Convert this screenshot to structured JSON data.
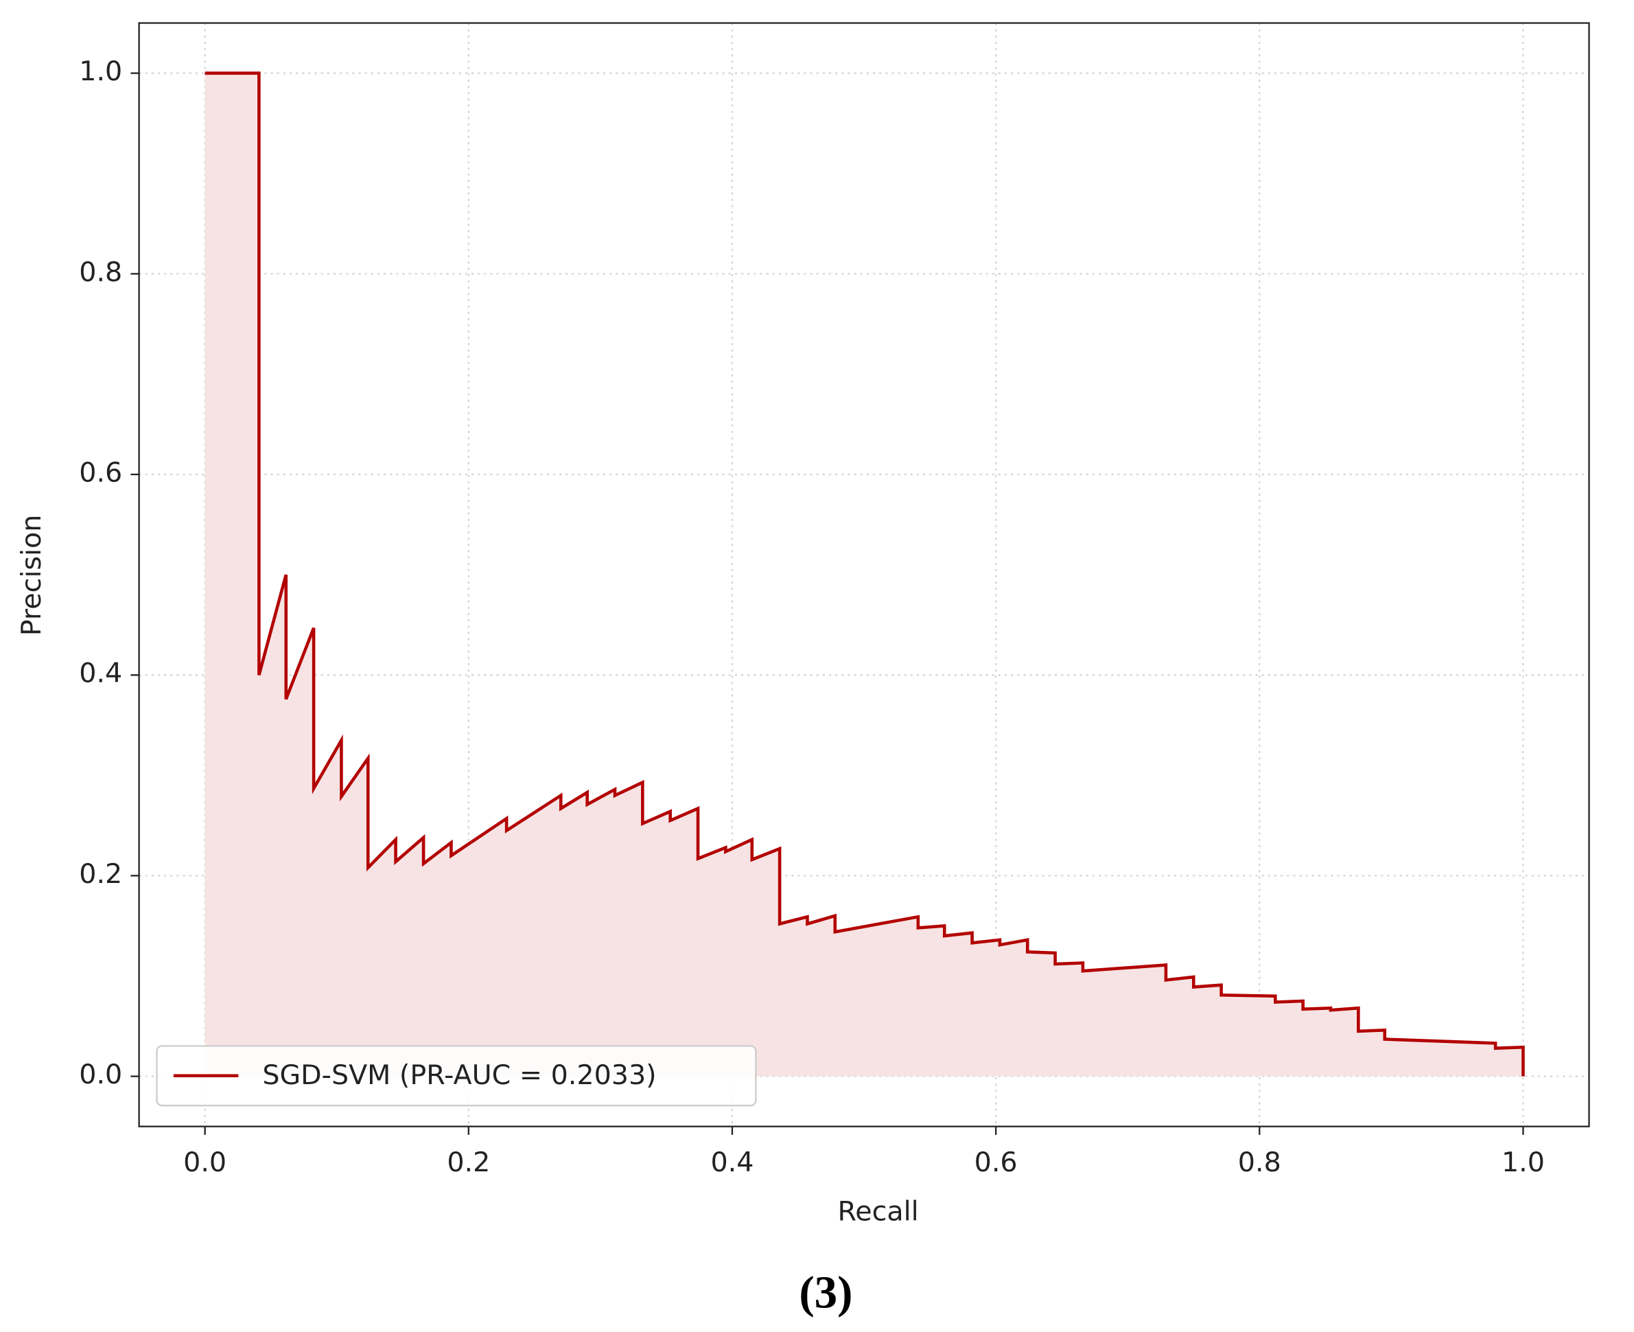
{
  "chart_data": {
    "type": "line",
    "x_label": "Recall",
    "y_label": "Precision",
    "caption": "(3)",
    "x": [
      0,
      0.041,
      0.041,
      0.0615,
      0.0615,
      0.0825,
      0.0825,
      0.1035,
      0.1035,
      0.1237,
      0.1237,
      0.1447,
      0.1447,
      0.1658,
      0.1658,
      0.1868,
      0.1868,
      0.2288,
      0.2288,
      0.27,
      0.27,
      0.29,
      0.29,
      0.311,
      0.311,
      0.332,
      0.332,
      0.353,
      0.353,
      0.374,
      0.374,
      0.395,
      0.395,
      0.415,
      0.415,
      0.436,
      0.436,
      0.457,
      0.457,
      0.478,
      0.478,
      0.541,
      0.541,
      0.561,
      0.561,
      0.582,
      0.582,
      0.603,
      0.603,
      0.624,
      0.624,
      0.645,
      0.645,
      0.666,
      0.666,
      0.729,
      0.729,
      0.75,
      0.75,
      0.771,
      0.771,
      0.812,
      0.812,
      0.833,
      0.833,
      0.854,
      0.854,
      0.875,
      0.875,
      0.895,
      0.895,
      0.979,
      0.979,
      1.0,
      1.0
    ],
    "series": [
      {
        "name": "SGD-SVM (PR-AUC = 0.2033)",
        "color": "#b30000",
        "fill": "#f7e3e3",
        "values": [
          1.0,
          1.0,
          0.4,
          0.5,
          0.376,
          0.447,
          0.287,
          0.335,
          0.279,
          0.317,
          0.208,
          0.236,
          0.214,
          0.238,
          0.212,
          0.233,
          0.22,
          0.257,
          0.245,
          0.28,
          0.267,
          0.283,
          0.271,
          0.286,
          0.28,
          0.293,
          0.252,
          0.264,
          0.255,
          0.267,
          0.217,
          0.228,
          0.224,
          0.236,
          0.216,
          0.227,
          0.152,
          0.159,
          0.152,
          0.16,
          0.144,
          0.159,
          0.148,
          0.15,
          0.14,
          0.143,
          0.133,
          0.136,
          0.131,
          0.136,
          0.124,
          0.123,
          0.112,
          0.113,
          0.105,
          0.111,
          0.096,
          0.099,
          0.089,
          0.091,
          0.081,
          0.08,
          0.074,
          0.075,
          0.067,
          0.068,
          0.066,
          0.068,
          0.045,
          0.046,
          0.037,
          0.033,
          0.028,
          0.029,
          0.0
        ]
      }
    ],
    "xlim": [
      -0.05,
      1.05
    ],
    "ylim": [
      -0.05,
      1.05
    ],
    "xticks": [
      {
        "value": 0,
        "label": "0.0"
      },
      {
        "value": 0.2,
        "label": "0.2"
      },
      {
        "value": 0.4,
        "label": "0.4"
      },
      {
        "value": 0.6,
        "label": "0.6"
      },
      {
        "value": 0.8,
        "label": "0.8"
      },
      {
        "value": 1,
        "label": "1.0"
      }
    ],
    "yticks": [
      {
        "value": 0,
        "label": "0.0"
      },
      {
        "value": 0.2,
        "label": "0.2"
      },
      {
        "value": 0.4,
        "label": "0.4"
      },
      {
        "value": 0.6,
        "label": "0.6"
      },
      {
        "value": 0.8,
        "label": "0.8"
      },
      {
        "value": 1,
        "label": "1.0"
      }
    ],
    "grid": true,
    "legend": "lower left"
  }
}
